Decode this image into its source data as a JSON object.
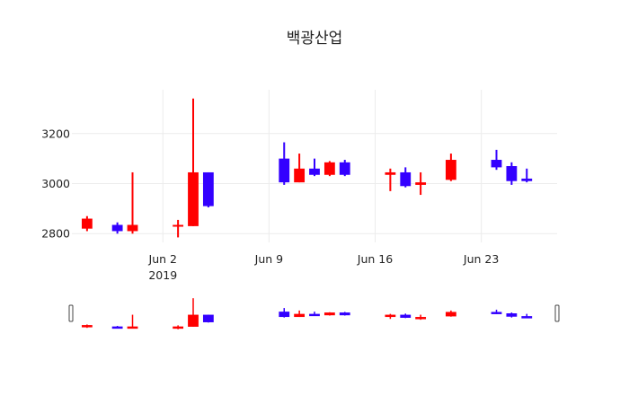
{
  "chart_data": {
    "type": "candlestick",
    "title": "백광산업",
    "xlabel": "",
    "ylabel": "",
    "ylim": [
      2765,
      3375
    ],
    "xlim": [
      "2019-05-27",
      "2019-06-28"
    ],
    "y_ticks": [
      2800,
      3000,
      3200
    ],
    "x_ticks": [
      {
        "date": "2019-06-02",
        "label": "Jun 2",
        "sublabel": "2019"
      },
      {
        "date": "2019-06-09",
        "label": "Jun 9",
        "sublabel": ""
      },
      {
        "date": "2019-06-16",
        "label": "Jun 16",
        "sublabel": ""
      },
      {
        "date": "2019-06-23",
        "label": "Jun 23",
        "sublabel": ""
      }
    ],
    "increasing_color": "#ff0000",
    "decreasing_color": "#3300ff",
    "grid": true,
    "legend": "none",
    "rangeslider": true,
    "candles": [
      {
        "date": "2019-05-28",
        "open": 2820,
        "high": 2870,
        "low": 2810,
        "close": 2860
      },
      {
        "date": "2019-05-30",
        "open": 2835,
        "high": 2845,
        "low": 2800,
        "close": 2810
      },
      {
        "date": "2019-05-31",
        "open": 2810,
        "high": 3045,
        "low": 2800,
        "close": 2835
      },
      {
        "date": "2019-06-03",
        "open": 2830,
        "high": 2855,
        "low": 2785,
        "close": 2835
      },
      {
        "date": "2019-06-04",
        "open": 2830,
        "high": 3340,
        "low": 2830,
        "close": 3045
      },
      {
        "date": "2019-06-05",
        "open": 3045,
        "high": 3045,
        "low": 2905,
        "close": 2910
      },
      {
        "date": "2019-06-10",
        "open": 3100,
        "high": 3165,
        "low": 2995,
        "close": 3005
      },
      {
        "date": "2019-06-11",
        "open": 3005,
        "high": 3120,
        "low": 3005,
        "close": 3060
      },
      {
        "date": "2019-06-12",
        "open": 3060,
        "high": 3100,
        "low": 3030,
        "close": 3035
      },
      {
        "date": "2019-06-13",
        "open": 3035,
        "high": 3090,
        "low": 3030,
        "close": 3085
      },
      {
        "date": "2019-06-14",
        "open": 3085,
        "high": 3095,
        "low": 3030,
        "close": 3035
      },
      {
        "date": "2019-06-17",
        "open": 3035,
        "high": 3060,
        "low": 2970,
        "close": 3045
      },
      {
        "date": "2019-06-18",
        "open": 3045,
        "high": 3065,
        "low": 2985,
        "close": 2990
      },
      {
        "date": "2019-06-19",
        "open": 2995,
        "high": 3045,
        "low": 2955,
        "close": 3005
      },
      {
        "date": "2019-06-21",
        "open": 3015,
        "high": 3120,
        "low": 3010,
        "close": 3095
      },
      {
        "date": "2019-06-24",
        "open": 3095,
        "high": 3135,
        "low": 3055,
        "close": 3065
      },
      {
        "date": "2019-06-25",
        "open": 3070,
        "high": 3085,
        "low": 2995,
        "close": 3010
      },
      {
        "date": "2019-06-26",
        "open": 3020,
        "high": 3060,
        "low": 3005,
        "close": 3010
      }
    ]
  }
}
